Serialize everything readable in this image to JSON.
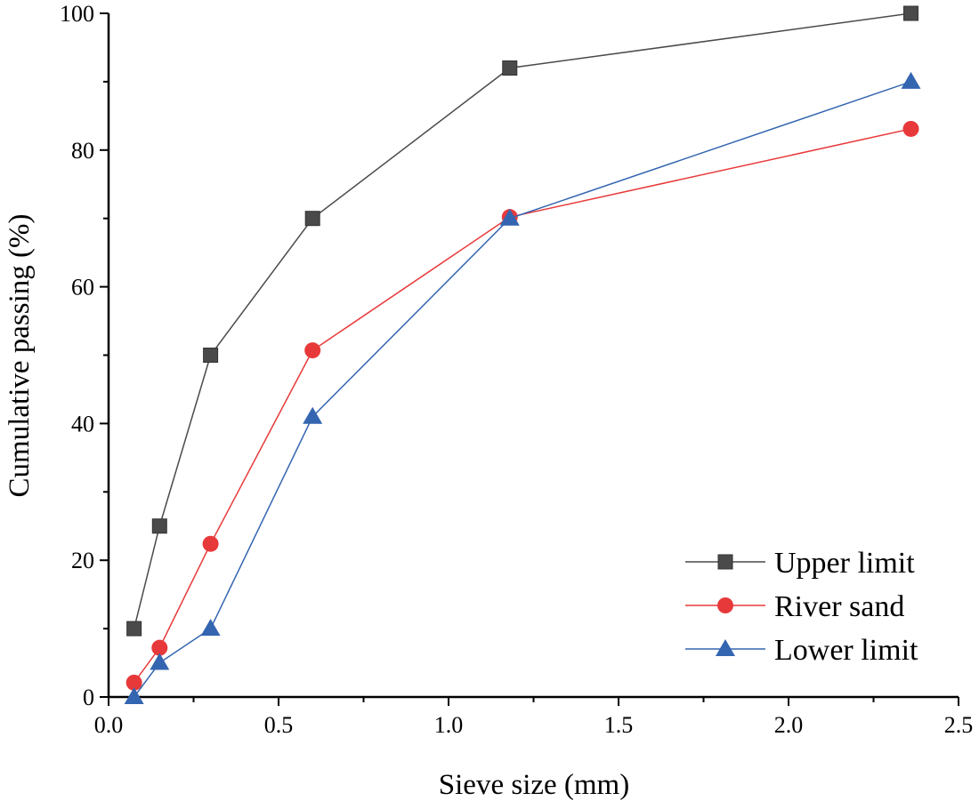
{
  "chart_data": {
    "type": "line",
    "title": "",
    "xlabel": "Sieve size (mm)",
    "ylabel": "Cumulative passing (%)",
    "xlim": [
      0,
      2.5
    ],
    "ylim": [
      0,
      100
    ],
    "xticks": [
      "0.0",
      "0.5",
      "1.0",
      "1.5",
      "2.0",
      "2.5"
    ],
    "yticks": [
      "0",
      "20",
      "40",
      "60",
      "80",
      "100"
    ],
    "grid": false,
    "legend_position": "bottom-right",
    "x": [
      0.075,
      0.15,
      0.3,
      0.6,
      1.18,
      2.36
    ],
    "series": [
      {
        "name": "Upper limit",
        "marker": "square",
        "color": "#4a4a4a",
        "values": [
          10,
          25,
          50,
          70,
          92,
          100
        ]
      },
      {
        "name": "River sand",
        "marker": "circle",
        "color": "#e8393a",
        "values": [
          2.1,
          7.2,
          22.4,
          50.7,
          70.2,
          83.1
        ]
      },
      {
        "name": "Lower limit",
        "marker": "triangle",
        "color": "#3465b0",
        "values": [
          0,
          5,
          10,
          41,
          70,
          90
        ]
      }
    ]
  }
}
